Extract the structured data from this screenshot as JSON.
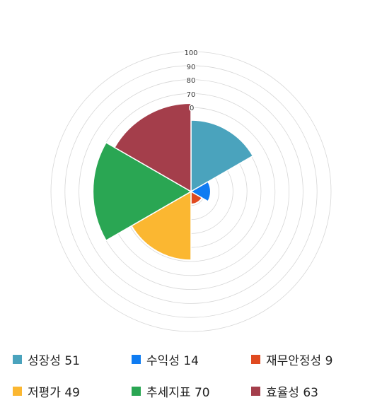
{
  "chart_data": {
    "type": "polar-area",
    "rlim": [
      0,
      100
    ],
    "tick_labels": [
      "100",
      "90",
      "80",
      "70",
      "0"
    ],
    "grid": true,
    "legend_position": "bottom",
    "series": [
      {
        "name": "성장성",
        "value": 51,
        "color": "#4aa3bd"
      },
      {
        "name": "수익성",
        "value": 14,
        "color": "#0f7cf2"
      },
      {
        "name": "재무안정성",
        "value": 9,
        "color": "#e04a20"
      },
      {
        "name": "저평가",
        "value": 49,
        "color": "#fbb731"
      },
      {
        "name": "추세지표",
        "value": 70,
        "color": "#2aa653"
      },
      {
        "name": "효율성",
        "value": 63,
        "color": "#a43e4b"
      }
    ]
  },
  "legend": [
    {
      "name": "성장성",
      "value": "51"
    },
    {
      "name": "수익성",
      "value": "14"
    },
    {
      "name": "재무안정성",
      "value": "9"
    },
    {
      "name": "저평가",
      "value": "49"
    },
    {
      "name": "추세지표",
      "value": "70"
    },
    {
      "name": "효율성",
      "value": "63"
    }
  ]
}
